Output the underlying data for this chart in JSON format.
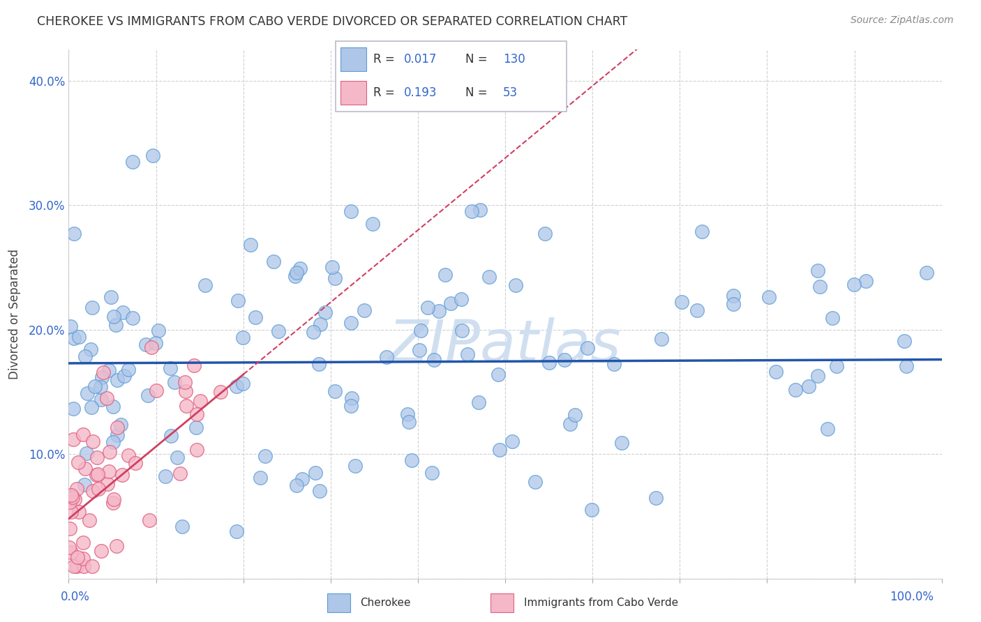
{
  "title": "CHEROKEE VS IMMIGRANTS FROM CABO VERDE DIVORCED OR SEPARATED CORRELATION CHART",
  "source": "Source: ZipAtlas.com",
  "ylabel": "Divorced or Separated",
  "blue_R": "0.017",
  "blue_N": "130",
  "pink_R": "0.193",
  "pink_N": "53",
  "blue_color": "#aec6e8",
  "blue_edge": "#5b9bd5",
  "pink_color": "#f4b8c8",
  "pink_edge": "#e06080",
  "blue_line_color": "#2255aa",
  "pink_line_color": "#d04060",
  "watermark_color": "#d0dff0",
  "watermark_text": "ZIPatlas",
  "legend_label_blue": "Cherokee",
  "legend_label_pink": "Immigrants from Cabo Verde",
  "background_color": "#ffffff",
  "grid_color": "#d0d0d0",
  "blue_intercept": 0.173,
  "blue_slope": 3e-05,
  "pink_intercept": 0.048,
  "pink_slope": 0.0058
}
